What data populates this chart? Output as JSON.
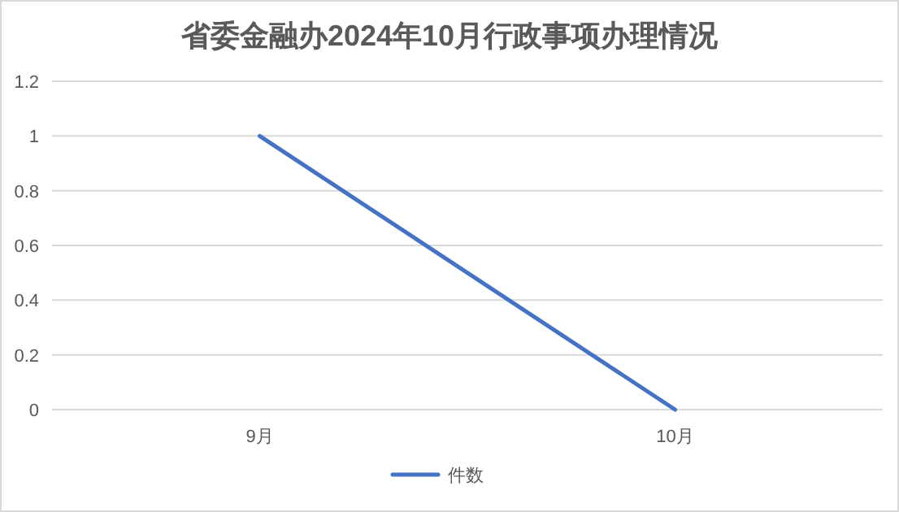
{
  "chart_data": {
    "type": "line",
    "title": "省委金融办2024年10月行政事项办理情况",
    "categories": [
      "9月",
      "10月"
    ],
    "series": [
      {
        "name": "件数",
        "color": "#4472c4",
        "values": [
          1,
          0
        ]
      }
    ],
    "ylim": [
      0,
      1.2
    ],
    "yticks": [
      0,
      0.2,
      0.4,
      0.6,
      0.8,
      1,
      1.2
    ],
    "grid": "y",
    "legend": "bottom",
    "marker": "none",
    "line_style": "solid"
  }
}
